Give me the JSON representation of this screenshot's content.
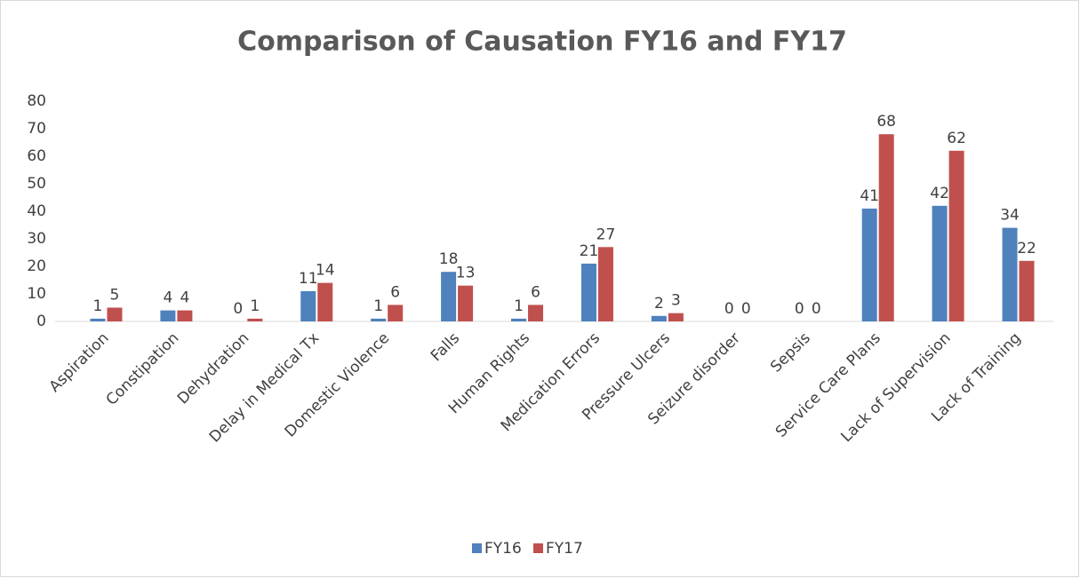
{
  "chart_data": {
    "type": "bar",
    "title": "Comparison of Causation FY16 and FY17",
    "categories": [
      "Aspiration",
      "Constipation",
      "Dehydration",
      "Delay in Medical Tx",
      "Domestic Violence",
      "Falls",
      "Human Rights",
      "Medication Errors",
      "Pressure Ulcers",
      "Seizure disorder",
      "Sepsis",
      "Service Care Plans",
      "Lack of Supervision",
      "Lack of Training"
    ],
    "series": [
      {
        "name": "FY16",
        "color": "#4f81bd",
        "values": [
          1,
          4,
          0,
          11,
          1,
          18,
          1,
          21,
          2,
          0,
          0,
          41,
          42,
          34
        ]
      },
      {
        "name": "FY17",
        "color": "#c0504d",
        "values": [
          5,
          4,
          1,
          14,
          6,
          13,
          6,
          27,
          3,
          0,
          0,
          68,
          62,
          22
        ]
      }
    ],
    "ylim": [
      0,
      80
    ],
    "yticks": [
      0,
      10,
      20,
      30,
      40,
      50,
      60,
      70,
      80
    ],
    "grid": false,
    "legend": "bottom"
  }
}
